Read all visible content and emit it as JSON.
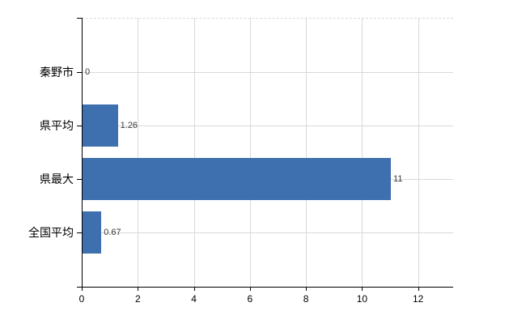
{
  "chart_data": {
    "type": "bar",
    "orientation": "horizontal",
    "title": "",
    "xlabel": "",
    "ylabel": "",
    "categories": [
      "秦野市",
      "県平均",
      "県最大",
      "全国平均"
    ],
    "values": [
      0,
      1.26,
      11,
      0.67
    ],
    "value_labels": [
      "0",
      "1.26",
      "11",
      "0.67"
    ],
    "x_ticks": [
      0,
      2,
      4,
      6,
      8,
      10,
      12
    ],
    "x_tick_labels": [
      "0",
      "2",
      "4",
      "6",
      "8",
      "10",
      "12"
    ],
    "xlim": [
      0,
      13.25
    ],
    "grid": true,
    "legend": false,
    "colors": {
      "bar": "#3e6fae",
      "axis": "#000000",
      "gridline": "#d9d9d9",
      "category_text": "#000000",
      "value_text": "#3a3a3a",
      "background": "#ffffff"
    }
  }
}
